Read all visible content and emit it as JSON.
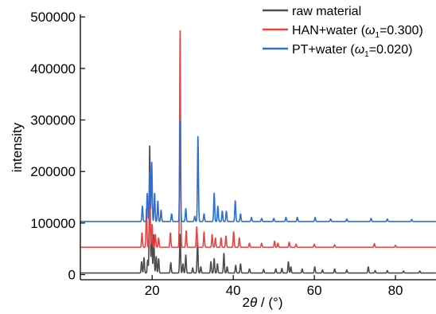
{
  "chart_data": {
    "type": "line",
    "xlabel": {
      "prefix": "2",
      "symbol": "θ",
      "unit": " / (°)"
    },
    "ylabel": "intensity",
    "xlim": [
      2.3,
      90
    ],
    "ylim": [
      -10000,
      505000
    ],
    "x_ticks": [
      20,
      40,
      60,
      80
    ],
    "x_tick_labels": [
      "20",
      "40",
      "60",
      "80"
    ],
    "y_ticks": [
      0,
      100000,
      200000,
      300000,
      400000,
      500000
    ],
    "y_tick_labels": [
      "0",
      "100000",
      "200000",
      "300000",
      "400000",
      "500000"
    ],
    "grid": false,
    "legend_position": "top-right",
    "series": [
      {
        "name": "raw material",
        "legend": {
          "text": "raw material"
        },
        "color": "#4d4d4d",
        "baseline": 3000,
        "peaks": [
          [
            17.4,
            22000
          ],
          [
            18.0,
            30000
          ],
          [
            18.9,
            25000
          ],
          [
            19.4,
            250000
          ],
          [
            19.9,
            85000
          ],
          [
            20.4,
            75000
          ],
          [
            21.0,
            32000
          ],
          [
            21.6,
            28000
          ],
          [
            24.6,
            20000
          ],
          [
            26.9,
            75000
          ],
          [
            27.6,
            18000
          ],
          [
            28.3,
            35000
          ],
          [
            30.0,
            10000
          ],
          [
            31.2,
            62000
          ],
          [
            32.0,
            12000
          ],
          [
            34.5,
            22000
          ],
          [
            35.3,
            28000
          ],
          [
            36.1,
            18000
          ],
          [
            37.7,
            38000
          ],
          [
            38.5,
            12000
          ],
          [
            40.6,
            15000
          ],
          [
            41.8,
            18000
          ],
          [
            44.0,
            8000
          ],
          [
            47.5,
            7000
          ],
          [
            50.5,
            8000
          ],
          [
            52.0,
            9000
          ],
          [
            53.6,
            22000
          ],
          [
            54.2,
            12000
          ],
          [
            57.0,
            8000
          ],
          [
            60.1,
            12000
          ],
          [
            62.0,
            6000
          ],
          [
            65.0,
            8000
          ],
          [
            68.0,
            6000
          ],
          [
            73.3,
            12000
          ],
          [
            75.0,
            5000
          ],
          [
            78.0,
            5000
          ],
          [
            82.0,
            4000
          ],
          [
            86.0,
            4000
          ]
        ]
      },
      {
        "name": "HAN+water (ω1=0.300)",
        "legend": {
          "text": "HAN+water (",
          "symbol": "ω",
          "subscript": "1",
          "suffix": "=0.300)"
        },
        "color": "#e84545",
        "baseline": 53000,
        "peaks": [
          [
            17.5,
            28000
          ],
          [
            18.6,
            75000
          ],
          [
            19.4,
            95000
          ],
          [
            20.0,
            45000
          ],
          [
            20.8,
            25000
          ],
          [
            21.6,
            18000
          ],
          [
            24.5,
            28000
          ],
          [
            26.9,
            420000
          ],
          [
            28.4,
            32000
          ],
          [
            31.0,
            40000
          ],
          [
            32.8,
            30000
          ],
          [
            34.8,
            25000
          ],
          [
            35.6,
            18000
          ],
          [
            37.0,
            18000
          ],
          [
            38.2,
            22000
          ],
          [
            40.1,
            30000
          ],
          [
            41.5,
            18000
          ],
          [
            44.0,
            8000
          ],
          [
            47.0,
            8000
          ],
          [
            50.2,
            12000
          ],
          [
            51.0,
            8000
          ],
          [
            53.8,
            10000
          ],
          [
            55.5,
            6000
          ],
          [
            60.0,
            6000
          ],
          [
            65.0,
            5000
          ],
          [
            74.8,
            7000
          ],
          [
            80.0,
            4000
          ]
        ]
      },
      {
        "name": "PT+water (ω1=0.020)",
        "legend": {
          "text": "PT+water (",
          "symbol": "ω",
          "subscript": "1",
          "suffix": "=0.020)"
        },
        "color": "#2c6fd6",
        "baseline": 103000,
        "peaks": [
          [
            17.6,
            30000
          ],
          [
            18.8,
            55000
          ],
          [
            19.4,
            98000
          ],
          [
            19.9,
            115000
          ],
          [
            20.6,
            55000
          ],
          [
            21.4,
            40000
          ],
          [
            22.2,
            22000
          ],
          [
            24.8,
            15000
          ],
          [
            26.9,
            195000
          ],
          [
            28.3,
            25000
          ],
          [
            30.5,
            10000
          ],
          [
            31.3,
            165000
          ],
          [
            32.8,
            15000
          ],
          [
            35.3,
            55000
          ],
          [
            36.2,
            30000
          ],
          [
            37.3,
            20000
          ],
          [
            38.3,
            20000
          ],
          [
            40.5,
            40000
          ],
          [
            41.8,
            15000
          ],
          [
            44.5,
            8000
          ],
          [
            47.0,
            6000
          ],
          [
            50.0,
            6000
          ],
          [
            53.0,
            8000
          ],
          [
            55.8,
            8000
          ],
          [
            60.2,
            8000
          ],
          [
            64.0,
            5000
          ],
          [
            68.0,
            5000
          ],
          [
            74.0,
            6000
          ],
          [
            78.0,
            5000
          ],
          [
            84.0,
            4000
          ]
        ]
      }
    ]
  }
}
